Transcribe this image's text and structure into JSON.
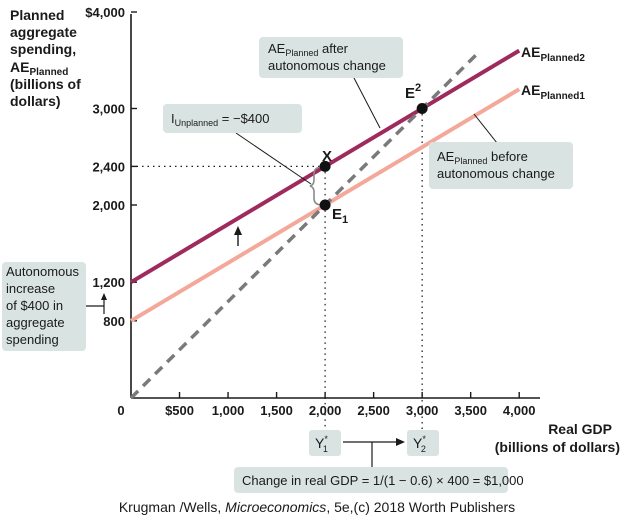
{
  "chart_data": {
    "type": "line",
    "ylabel_lines": [
      "Planned",
      "aggregate",
      "spending,"
    ],
    "ylabel_ae": "AE",
    "ylabel_ae_sub": "Planned",
    "ylabel_units": [
      "(billions of",
      "dollars)"
    ],
    "xlabel_lines": [
      "Real GDP",
      "(billions of dollars)"
    ],
    "origin_label": "0",
    "xlim": [
      0,
      4000
    ],
    "ylim": [
      0,
      4000
    ],
    "x_ticks": [
      {
        "value": 500,
        "label": "$500"
      },
      {
        "value": 1000,
        "label": "1,000"
      },
      {
        "value": 1500,
        "label": "1,500"
      },
      {
        "value": 2000,
        "label": "2,000"
      },
      {
        "value": 2500,
        "label": "2,500"
      },
      {
        "value": 3000,
        "label": "3,000"
      },
      {
        "value": 3500,
        "label": "3,500"
      },
      {
        "value": 4000,
        "label": "4,000"
      }
    ],
    "y_ticks": [
      {
        "value": 4000,
        "label": "$4,000"
      },
      {
        "value": 3000,
        "label": "3,000"
      },
      {
        "value": 2400,
        "label": "2,400"
      },
      {
        "value": 2000,
        "label": "2,000"
      },
      {
        "value": 1200,
        "label": "1,200"
      },
      {
        "value": 800,
        "label": "800"
      }
    ],
    "series": [
      {
        "key": "ae2",
        "label": "AE",
        "label_sub": "Planned2",
        "color": "#9e2a5e",
        "x": [
          0,
          4000
        ],
        "y": [
          1200,
          3600
        ]
      },
      {
        "key": "ae1",
        "label": "AE",
        "label_sub": "Planned1",
        "color": "#f4a89a",
        "x": [
          0,
          4000
        ],
        "y": [
          800,
          3200
        ]
      },
      {
        "key": "diag",
        "label": "",
        "color": "#7a7a7a",
        "dashed": true,
        "x": [
          0,
          3600
        ],
        "y": [
          0,
          3600
        ]
      }
    ],
    "points": [
      {
        "label": "X",
        "x": 2000,
        "y": 2400
      },
      {
        "label": "E",
        "sub": "1",
        "x": 2000,
        "y": 2000
      },
      {
        "label": "E",
        "sub": "2",
        "x": 3000,
        "y": 3000
      }
    ],
    "annotations": {
      "after_box": {
        "pre": "AE",
        "sub": "Planned",
        "post": " after",
        "line2": "autonomous change"
      },
      "before_box": {
        "pre": "AE",
        "sub": "Planned",
        "post": " before",
        "line2": "autonomous change"
      },
      "unplanned_box": {
        "pre": "I",
        "sub": "Unplanned",
        "post": " = −$400"
      },
      "autonomous_box": [
        "Autonomous",
        "increase",
        "of $400 in",
        "aggregate",
        "spending"
      ],
      "y1_box": {
        "pre": "Y",
        "sup": "*",
        "sub": "1"
      },
      "y2_box": {
        "pre": "Y",
        "sup": "*",
        "sub": "2"
      },
      "change_box": "Change in real GDP = 1/(1 − 0.6) × 400 = $1,000"
    },
    "credit": {
      "pre": "Krugman /Wells, ",
      "italic": "Microeconomics",
      "post": ", 5e,(c) 2018 Worth Publishers"
    }
  }
}
